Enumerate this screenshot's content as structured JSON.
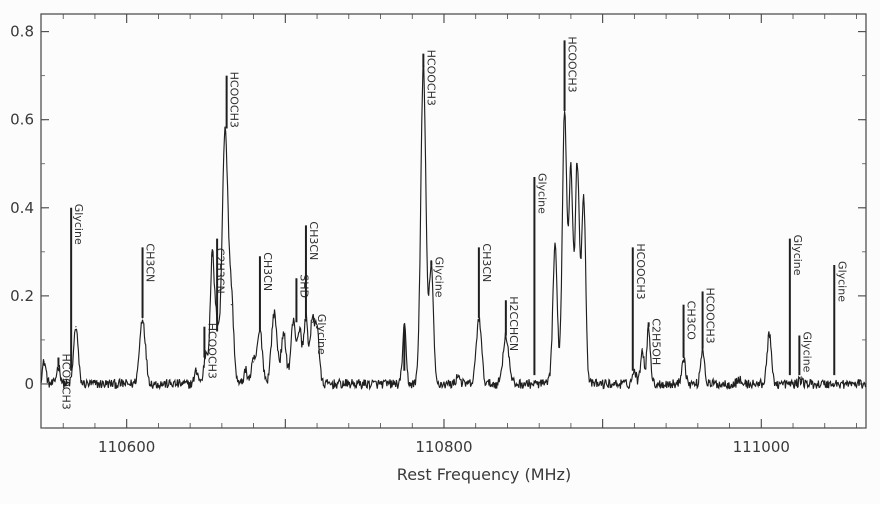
{
  "chart_data": {
    "type": "line",
    "title": "",
    "xlabel": "Rest Frequency (MHz)",
    "ylabel": "",
    "xlim": [
      110546,
      111066
    ],
    "ylim": [
      -0.1,
      0.84
    ],
    "x_ticks": [
      {
        "value": 110600,
        "label": "110600"
      },
      {
        "value": 110800,
        "label": "110800"
      },
      {
        "value": 111000,
        "label": "111000"
      }
    ],
    "y_ticks": [
      {
        "value": 0,
        "label": "0"
      },
      {
        "value": 0.2,
        "label": "0.2"
      },
      {
        "value": 0.4,
        "label": "0.4"
      },
      {
        "value": 0.6,
        "label": "0.6"
      },
      {
        "value": 0.8,
        "label": "0.8"
      }
    ],
    "grid": false,
    "peaks": [
      {
        "x": 110548,
        "y": 0.05,
        "w": 1.2
      },
      {
        "x": 110557,
        "y": 0.04,
        "w": 1.2
      },
      {
        "x": 110568,
        "y": 0.13,
        "w": 1.4
      },
      {
        "x": 110610,
        "y": 0.15,
        "w": 1.8
      },
      {
        "x": 110644,
        "y": 0.03,
        "w": 1.2
      },
      {
        "x": 110650,
        "y": 0.07,
        "w": 1.3
      },
      {
        "x": 110654,
        "y": 0.29,
        "w": 1.3
      },
      {
        "x": 110657,
        "y": 0.12,
        "w": 1.3
      },
      {
        "x": 110662,
        "y": 0.58,
        "w": 1.8
      },
      {
        "x": 110666,
        "y": 0.18,
        "w": 1.5
      },
      {
        "x": 110675,
        "y": 0.03,
        "w": 1.2
      },
      {
        "x": 110680,
        "y": 0.05,
        "w": 1.4
      },
      {
        "x": 110684,
        "y": 0.12,
        "w": 1.6
      },
      {
        "x": 110693,
        "y": 0.16,
        "w": 1.8
      },
      {
        "x": 110699,
        "y": 0.11,
        "w": 1.6
      },
      {
        "x": 110705,
        "y": 0.14,
        "w": 1.5
      },
      {
        "x": 110709,
        "y": 0.12,
        "w": 1.4
      },
      {
        "x": 110713,
        "y": 0.15,
        "w": 1.3
      },
      {
        "x": 110717,
        "y": 0.14,
        "w": 1.3
      },
      {
        "x": 110720,
        "y": 0.13,
        "w": 1.3
      },
      {
        "x": 110775,
        "y": 0.13,
        "w": 1.1
      },
      {
        "x": 110787,
        "y": 0.72,
        "w": 1.6
      },
      {
        "x": 110792,
        "y": 0.27,
        "w": 1.3
      },
      {
        "x": 110809,
        "y": 0.02,
        "w": 1.2
      },
      {
        "x": 110822,
        "y": 0.15,
        "w": 1.6
      },
      {
        "x": 110839,
        "y": 0.11,
        "w": 1.8
      },
      {
        "x": 110870,
        "y": 0.31,
        "w": 1.4
      },
      {
        "x": 110876,
        "y": 0.62,
        "w": 1.4
      },
      {
        "x": 110880,
        "y": 0.48,
        "w": 1.3
      },
      {
        "x": 110884,
        "y": 0.5,
        "w": 1.3
      },
      {
        "x": 110888,
        "y": 0.43,
        "w": 1.3
      },
      {
        "x": 110920,
        "y": 0.03,
        "w": 1.2
      },
      {
        "x": 110925,
        "y": 0.08,
        "w": 1.1
      },
      {
        "x": 110929,
        "y": 0.13,
        "w": 1.1
      },
      {
        "x": 110951,
        "y": 0.06,
        "w": 1.2
      },
      {
        "x": 110963,
        "y": 0.08,
        "w": 1.2
      },
      {
        "x": 110986,
        "y": 0.01,
        "w": 1.2
      },
      {
        "x": 111005,
        "y": 0.11,
        "w": 1.4
      },
      {
        "x": 111025,
        "y": 0.01,
        "w": 1.2
      }
    ],
    "annotations": [
      {
        "x": 110557,
        "y0": 0.04,
        "y1": 0.06,
        "label": "HCOOCH3",
        "vertical": true
      },
      {
        "x": 110565,
        "y0": 0.03,
        "y1": 0.4,
        "label": "Glycine",
        "vertical": true
      },
      {
        "x": 110610,
        "y0": 0.15,
        "y1": 0.31,
        "label": "CH3CN",
        "vertical": true
      },
      {
        "x": 110649,
        "y0": 0.06,
        "y1": 0.13,
        "label": "HCOOCH3",
        "vertical": true
      },
      {
        "x": 110654,
        "y0": 0.29,
        "y1": 0.3,
        "label": "C2H3CN",
        "vertical": true
      },
      {
        "x": 110657,
        "y0": 0.12,
        "y1": 0.33,
        "label": "",
        "vertical": true
      },
      {
        "x": 110663,
        "y0": 0.58,
        "y1": 0.7,
        "label": "HCOOCH3",
        "vertical": true
      },
      {
        "x": 110684,
        "y0": 0.12,
        "y1": 0.29,
        "label": "CH3CN",
        "vertical": true
      },
      {
        "x": 110707,
        "y0": 0.14,
        "y1": 0.24,
        "label": "SHD",
        "vertical": true
      },
      {
        "x": 110713,
        "y0": 0.15,
        "y1": 0.36,
        "label": "CH3CN",
        "vertical": true
      },
      {
        "x": 110718,
        "y0": 0.14,
        "y1": 0.15,
        "label": "Glycine",
        "vertical": true
      },
      {
        "x": 110775,
        "y0": 0.03,
        "y1": 0.13,
        "label": "",
        "vertical": true
      },
      {
        "x": 110787,
        "y0": 0.72,
        "y1": 0.75,
        "label": "HCOOCH3",
        "vertical": true
      },
      {
        "x": 110792,
        "y0": 0.27,
        "y1": 0.28,
        "label": "Glycine",
        "vertical": true
      },
      {
        "x": 110822,
        "y0": 0.15,
        "y1": 0.31,
        "label": "CH3CN",
        "vertical": true
      },
      {
        "x": 110839,
        "y0": 0.11,
        "y1": 0.19,
        "label": "H2CCHCN",
        "vertical": true
      },
      {
        "x": 110857,
        "y0": 0.02,
        "y1": 0.47,
        "label": "Glycine",
        "vertical": true
      },
      {
        "x": 110876,
        "y0": 0.62,
        "y1": 0.78,
        "label": "HCOOCH3",
        "vertical": true
      },
      {
        "x": 110919,
        "y0": 0.03,
        "y1": 0.31,
        "label": "HCOOCH3",
        "vertical": true
      },
      {
        "x": 110929,
        "y0": 0.13,
        "y1": 0.14,
        "label": "C2H5OH",
        "vertical": true
      },
      {
        "x": 110951,
        "y0": 0.06,
        "y1": 0.18,
        "label": "CH3CO",
        "vertical": true
      },
      {
        "x": 110963,
        "y0": 0.08,
        "y1": 0.21,
        "label": "HCOOCH3",
        "vertical": true
      },
      {
        "x": 111018,
        "y0": 0.02,
        "y1": 0.33,
        "label": "Glycine",
        "vertical": true
      },
      {
        "x": 111024,
        "y0": 0.02,
        "y1": 0.11,
        "label": "Glycine",
        "vertical": true
      },
      {
        "x": 111046,
        "y0": 0.02,
        "y1": 0.27,
        "label": "Glycine",
        "vertical": true
      }
    ]
  }
}
